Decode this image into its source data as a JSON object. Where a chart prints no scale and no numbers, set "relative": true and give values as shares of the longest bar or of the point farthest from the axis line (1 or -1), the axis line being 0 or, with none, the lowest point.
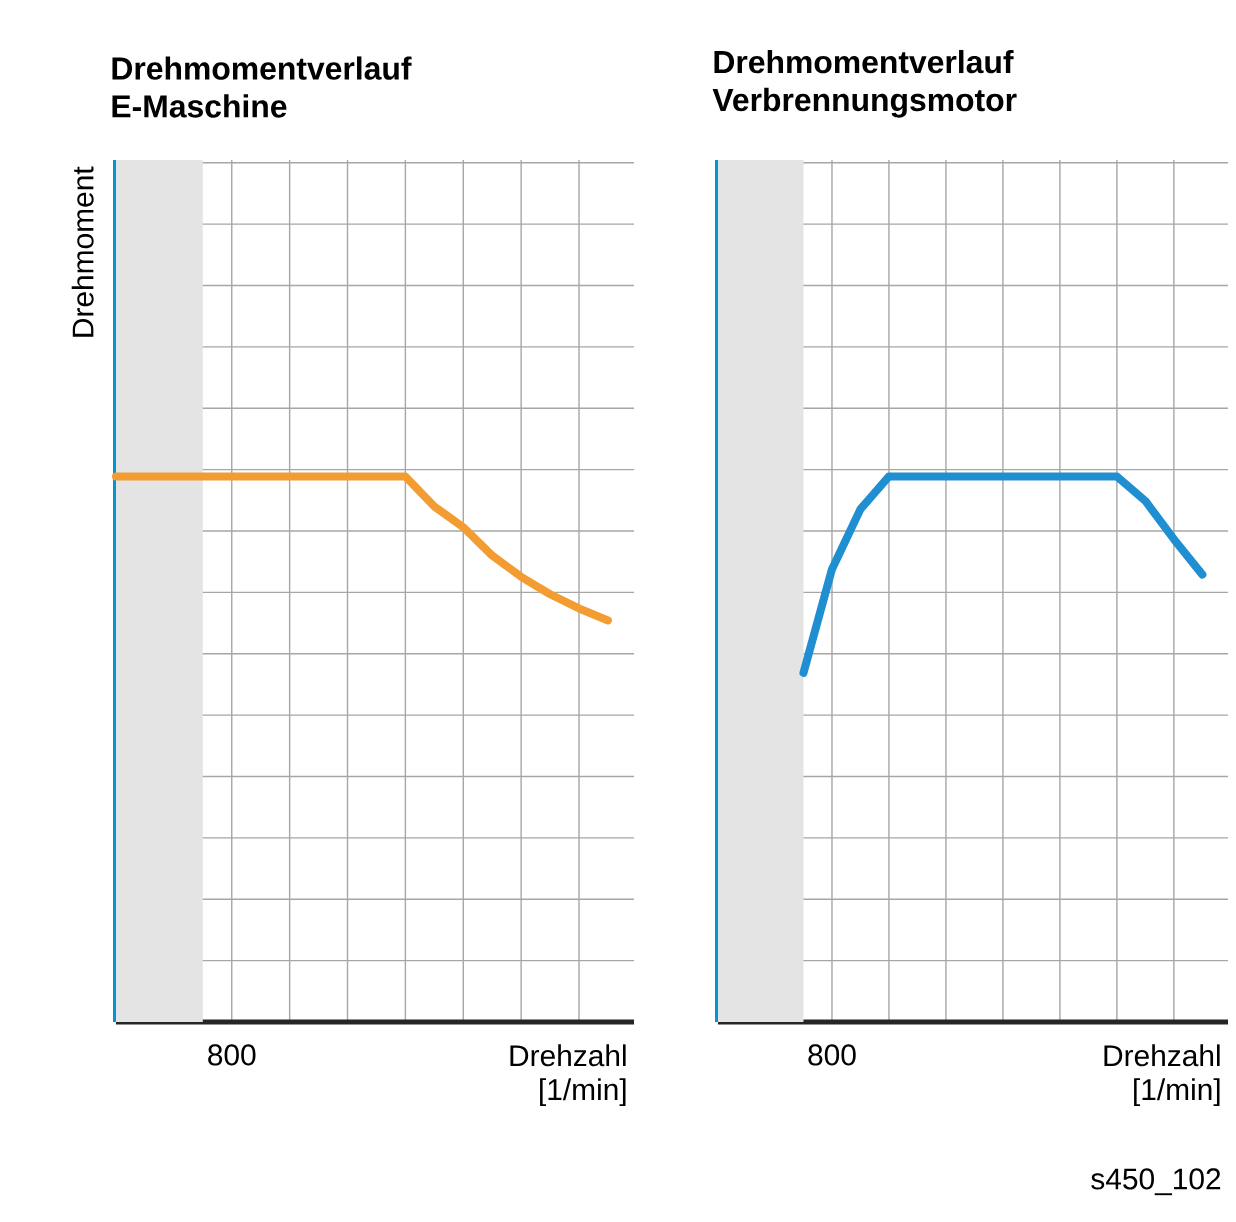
{
  "chart_data": [
    {
      "type": "line",
      "title": "Drehmomentverlauf E-Maschine",
      "ylabel": "Drehmoment",
      "xlabel": "Drehzahl [1/min]",
      "relative": true,
      "grid": true,
      "categories": [
        null,
        null,
        null,
        null,
        null,
        null,
        null,
        null,
        null,
        null,
        null,
        null,
        null,
        null,
        null,
        null,
        null,
        null
      ],
      "series": [
        {
          "color": "#f39c32",
          "values": [
            1,
            1,
            1,
            1,
            1,
            1,
            1,
            1,
            1,
            1,
            1,
            0.945,
            0.907,
            0.855,
            0.816,
            0.784,
            0.758,
            0.736
          ]
        }
      ],
      "annotations": [
        "800"
      ]
    },
    {
      "type": "line",
      "title": "Drehmomentverlauf Verbrennungsmotor",
      "xlabel": "Drehzahl [1/min]",
      "relative": true,
      "grid": true,
      "categories": [
        null,
        null,
        null,
        null,
        null,
        null,
        null,
        null,
        null,
        null,
        null,
        null,
        null,
        null,
        null,
        null,
        null,
        null
      ],
      "series": [
        {
          "color": "#1f8fd2",
          "values": [
            null,
            null,
            null,
            0.64,
            0.83,
            0.94,
            1,
            1,
            1,
            1,
            1,
            1,
            1,
            1,
            1,
            0.955,
            0.885,
            0.82
          ]
        }
      ],
      "annotations": [
        "800",
        "s450_102"
      ]
    }
  ]
}
